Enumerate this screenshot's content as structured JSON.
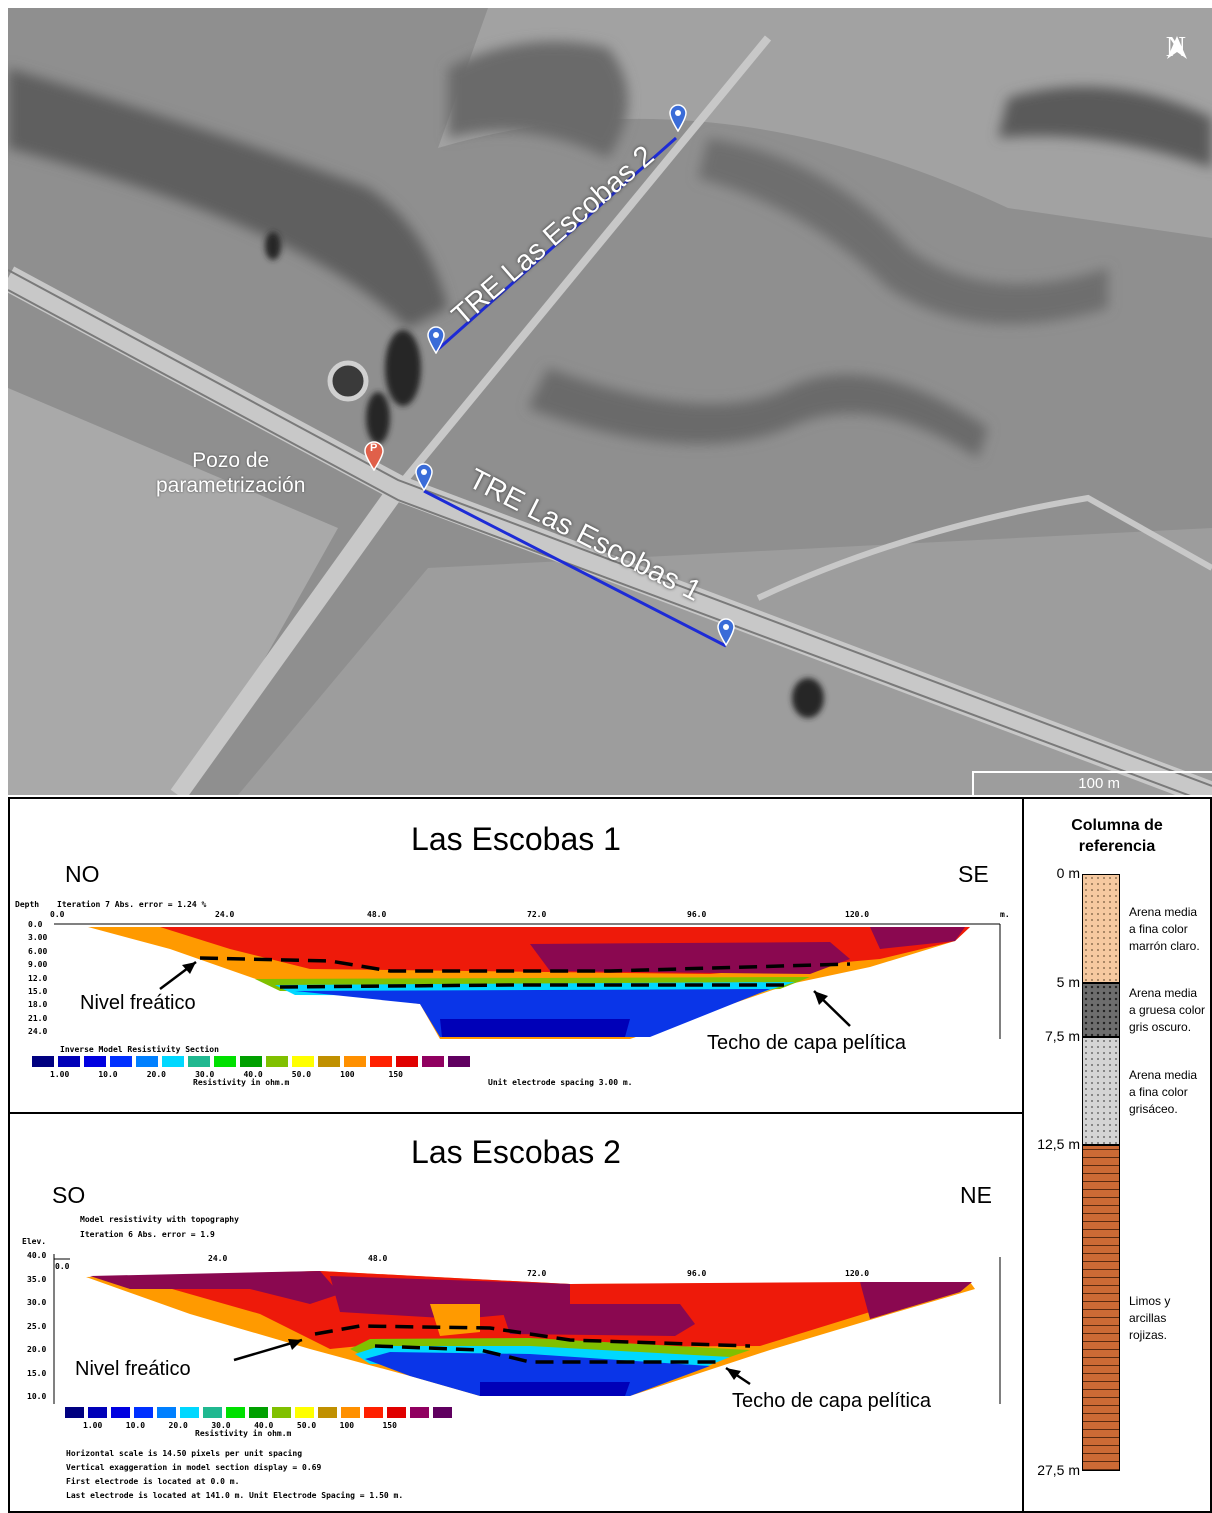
{
  "map": {
    "north_label": "N",
    "scale_label": "100 m",
    "well_label": "Pozo de\nparametrización",
    "well_marker": "P",
    "tre1_label": "TRE Las Escobas 1",
    "tre2_label": "TRE Las Escobas 2"
  },
  "section1": {
    "title": "Las Escobas 1",
    "left_dir": "NO",
    "right_dir": "SE",
    "header": "Iteration 7 Abs. error = 1.24 %",
    "depth_label": "Depth",
    "unit_label": "m.",
    "x_ticks": [
      "0.0",
      "24.0",
      "48.0",
      "72.0",
      "96.0",
      "120.0"
    ],
    "y_ticks": [
      "0.0",
      "3.00",
      "6.00",
      "9.00",
      "12.0",
      "15.0",
      "18.0",
      "21.0",
      "24.0"
    ],
    "legend_title": "Inverse Model Resistivity Section",
    "legend_values": [
      "1.00",
      "10.0",
      "20.0",
      "30.0",
      "40.0",
      "50.0",
      "100",
      "150"
    ],
    "legend_unit": "Resistivity in ohm.m",
    "spacing_note": "Unit electrode spacing 3.00 m.",
    "water_table": "Nivel freático",
    "clay_top": "Techo de capa pelítica"
  },
  "section2": {
    "title": "Las Escobas 2",
    "left_dir": "SO",
    "right_dir": "NE",
    "header1": "Model resistivity with topography",
    "header2": "Iteration 6 Abs. error = 1.9",
    "elev_label": "Elev.",
    "x_ticks": [
      "0.0",
      "24.0",
      "48.0",
      "72.0",
      "96.0",
      "120.0"
    ],
    "y_ticks": [
      "40.0",
      "35.0",
      "30.0",
      "25.0",
      "20.0",
      "15.0",
      "10.0"
    ],
    "legend_values": [
      "1.00",
      "10.0",
      "20.0",
      "30.0",
      "40.0",
      "50.0",
      "100",
      "150"
    ],
    "legend_unit": "Resistivity in ohm.m",
    "footer": [
      "Horizontal scale is 14.50 pixels per unit spacing",
      "Vertical exaggeration in model section display = 0.69",
      "First electrode is located at 0.0 m.",
      "Last electrode is located at 141.0 m.     Unit Electrode Spacing = 1.50 m."
    ],
    "water_table": "Nivel freático",
    "clay_top": "Techo de capa pelítica"
  },
  "column": {
    "title": "Columna de\nreferencia",
    "depths": [
      "0 m",
      "5 m",
      "7,5 m",
      "12,5 m",
      "27,5 m"
    ],
    "layers": [
      {
        "desc": "Arena media\na fina color\nmarrón claro.",
        "color": "#f6c9a0"
      },
      {
        "desc": "Arena media\na gruesa color\ngris oscuro.",
        "color": "#6d6d6d"
      },
      {
        "desc": "Arena media\na fina color\ngrisáceo.",
        "color": "#d4d4d4"
      },
      {
        "desc": "Limos y\narcillas\nrojizas.",
        "color": "#cc6a35"
      }
    ]
  },
  "colors": {
    "scale": [
      "#000080",
      "#0000b8",
      "#0000e0",
      "#0030ff",
      "#0080ff",
      "#00d8ff",
      "#20b890",
      "#00e000",
      "#00a000",
      "#80c000",
      "#ffff00",
      "#c09000",
      "#ff9000",
      "#ff2000",
      "#e00000",
      "#900060",
      "#600060"
    ]
  }
}
